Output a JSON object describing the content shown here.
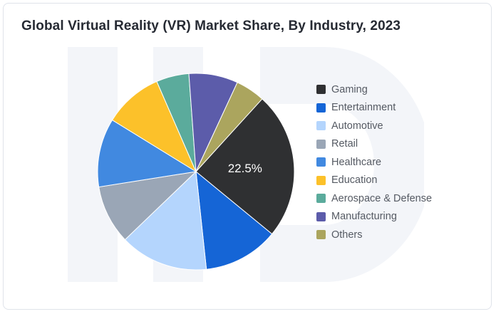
{
  "chart_data": {
    "type": "pie",
    "title": "Global Virtual Reality (VR) Market Share, By Industry, 2023",
    "legend_position": "right",
    "slices": [
      {
        "label": "Gaming",
        "value": 22.5,
        "color": "#2f3032",
        "show_label": true
      },
      {
        "label": "Entertainment",
        "value": 11.5,
        "color": "#1565d6",
        "show_label": false
      },
      {
        "label": "Automotive",
        "value": 13.5,
        "color": "#b4d5fd",
        "show_label": false
      },
      {
        "label": "Retail",
        "value": 9.0,
        "color": "#9aa6b6",
        "show_label": false
      },
      {
        "label": "Healthcare",
        "value": 10.5,
        "color": "#4189e0",
        "show_label": false
      },
      {
        "label": "Education",
        "value": 9.0,
        "color": "#fcc12a",
        "show_label": false
      },
      {
        "label": "Aerospace & Defense",
        "value": 5.0,
        "color": "#5bab9c",
        "show_label": false
      },
      {
        "label": "Manufacturing",
        "value": 7.5,
        "color": "#5c5caa",
        "show_label": false
      },
      {
        "label": "Others",
        "value": 4.5,
        "color": "#aba55e",
        "show_label": false
      }
    ],
    "value_label_text": "22.5%"
  }
}
